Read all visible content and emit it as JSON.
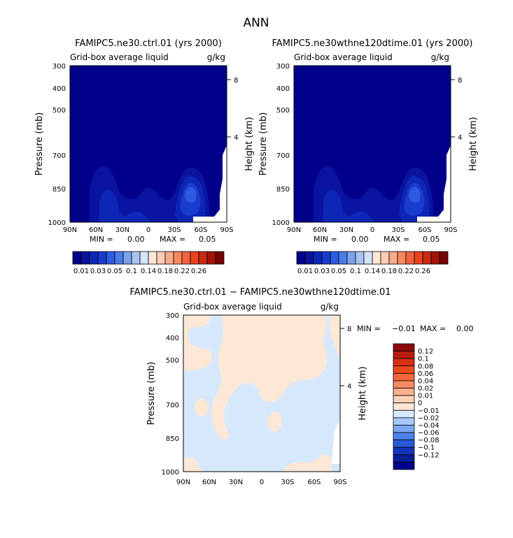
{
  "figure_title": "ANN",
  "chart_data": [
    {
      "type": "heatmap",
      "title": "FAMIPC5.ne30.ctrl.01 (yrs 2000)",
      "subtitle_left": "Grid-box average liquid",
      "subtitle_right": "g/kg",
      "ylabel": "Pressure (mb)",
      "ylabel_right": "Height (km)",
      "x_ticks": [
        "90N",
        "60N",
        "30N",
        "0",
        "30S",
        "60S",
        "90S"
      ],
      "y_ticks": [
        "300",
        "400",
        "500",
        "700",
        "850",
        "1000"
      ],
      "y_ticks_right": [
        "8",
        "4"
      ],
      "stats": {
        "min_label": "MIN =",
        "min_value": "0.00",
        "max_label": "MAX =",
        "max_value": "0.05"
      },
      "colorbar": {
        "orientation": "horizontal",
        "labels": [
          "0.01",
          "0.03",
          "0.05",
          "0.1",
          "0.14",
          "0.18",
          "0.22",
          "0.26"
        ],
        "colors": [
          "#00008a",
          "#0a14a0",
          "#0e26b6",
          "#1a3ccc",
          "#2c5ae0",
          "#4a7ce8",
          "#7aa0ee",
          "#a8c4f4",
          "#d4e4fa",
          "#fde8d8",
          "#fbcdb4",
          "#f8ab8a",
          "#f68862",
          "#f2643e",
          "#e84422",
          "#cc2810",
          "#a41408",
          "#760404"
        ]
      }
    },
    {
      "type": "heatmap",
      "title": "FAMIPC5.ne30wthne120dtime.01 (yrs 2000)",
      "subtitle_left": "Grid-box average liquid",
      "subtitle_right": "g/kg",
      "ylabel": "Pressure (mb)",
      "ylabel_right": "Height (km)",
      "x_ticks": [
        "90N",
        "60N",
        "30N",
        "0",
        "30S",
        "60S",
        "90S"
      ],
      "y_ticks": [
        "300",
        "400",
        "500",
        "700",
        "850",
        "1000"
      ],
      "y_ticks_right": [
        "8",
        "4"
      ],
      "stats": {
        "min_label": "MIN =",
        "min_value": "0.00",
        "max_label": "MAX =",
        "max_value": "0.05"
      },
      "colorbar": {
        "orientation": "horizontal",
        "labels": [
          "0.01",
          "0.03",
          "0.05",
          "0.1",
          "0.14",
          "0.18",
          "0.22",
          "0.26"
        ],
        "colors": [
          "#00008a",
          "#0a14a0",
          "#0e26b6",
          "#1a3ccc",
          "#2c5ae0",
          "#4a7ce8",
          "#7aa0ee",
          "#a8c4f4",
          "#d4e4fa",
          "#fde8d8",
          "#fbcdb4",
          "#f8ab8a",
          "#f68862",
          "#f2643e",
          "#e84422",
          "#cc2810",
          "#a41408",
          "#760404"
        ]
      }
    },
    {
      "type": "heatmap",
      "title": "FAMIPC5.ne30.ctrl.01 − FAMIPC5.ne30wthne120dtime.01",
      "subtitle_left": "Grid-box average liquid",
      "subtitle_right": "g/kg",
      "ylabel": "Pressure (mb)",
      "ylabel_right": "Height (km)",
      "x_ticks": [
        "90N",
        "60N",
        "30N",
        "0",
        "30S",
        "60S",
        "90S"
      ],
      "y_ticks": [
        "300",
        "400",
        "500",
        "700",
        "850",
        "1000"
      ],
      "y_ticks_right": [
        "8",
        "4"
      ],
      "stats": {
        "min_label": "MIN =",
        "min_value": "−0.01",
        "max_label": "MAX =",
        "max_value": "0.00"
      },
      "colorbar": {
        "orientation": "vertical",
        "labels": [
          "0.12",
          "0.1",
          "0.08",
          "0.06",
          "0.04",
          "0.02",
          "0.01",
          "0",
          "−0.01",
          "−0.02",
          "−0.04",
          "−0.06",
          "−0.08",
          "−0.1",
          "−0.12"
        ],
        "colors": [
          "#8c0a0a",
          "#b81c0c",
          "#d83012",
          "#ea4a1e",
          "#f4663a",
          "#f68a62",
          "#f8b08e",
          "#fbd2b8",
          "#fde8d6",
          "#d8e8fc",
          "#a8c8f8",
          "#7ca6f2",
          "#4e80ec",
          "#2a58d8",
          "#1434b8",
          "#0a1c98",
          "#00008a"
        ]
      }
    }
  ]
}
